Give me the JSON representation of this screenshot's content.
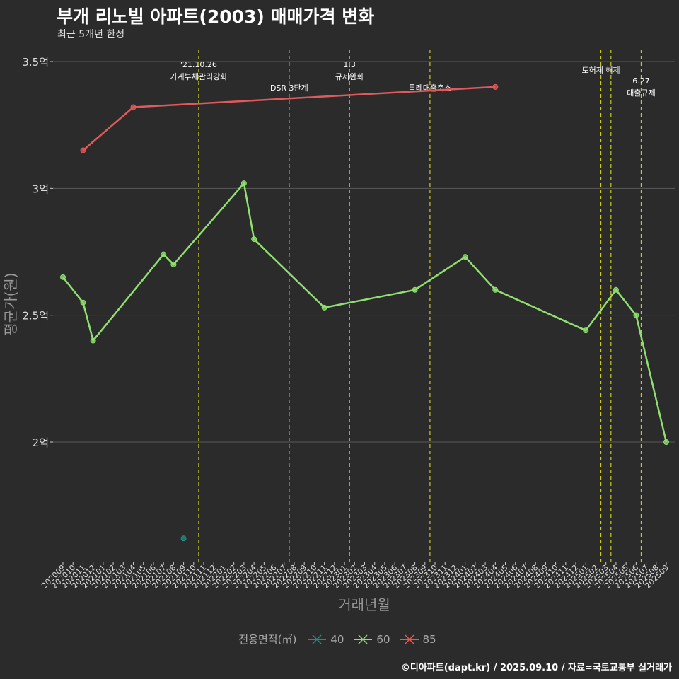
{
  "header": {
    "title": "부개 리노빌 아파트(2003) 매매가격 변화",
    "subtitle": "최근 5개년 한정"
  },
  "footer": {
    "credit": "©디아파트(dapt.kr) / 2025.09.10 / 자료=국토교통부 실거래가"
  },
  "colors": {
    "background": "#2b2b2c",
    "grid": "#5a5a5a",
    "event_line": "#c8c81e",
    "s40": "#2a8a80",
    "s60": "#90e070",
    "s85": "#e05a5a"
  },
  "chart_data": {
    "type": "line",
    "xlabel": "거래년월",
    "ylabel": "평균가(원)",
    "ylim": [
      1.55,
      3.55
    ],
    "y_ticks": [
      {
        "value": 2.0,
        "label": "2억"
      },
      {
        "value": 2.5,
        "label": "2.5억"
      },
      {
        "value": 3.0,
        "label": "3억"
      },
      {
        "value": 3.5,
        "label": "3.5억"
      }
    ],
    "categories": [
      "202009",
      "202010",
      "202011",
      "202012",
      "202101",
      "202102",
      "202103",
      "202104",
      "202105",
      "202106",
      "202107",
      "202108",
      "202109",
      "202110",
      "202111",
      "202112",
      "202201",
      "202202",
      "202203",
      "202204",
      "202205",
      "202206",
      "202207",
      "202208",
      "202209",
      "202210",
      "202211",
      "202212",
      "202301",
      "202302",
      "202303",
      "202304",
      "202305",
      "202306",
      "202307",
      "202308",
      "202309",
      "202310",
      "202311",
      "202312",
      "202401",
      "202402",
      "202403",
      "202404",
      "202405",
      "202406",
      "202407",
      "202408",
      "202409",
      "202410",
      "202411",
      "202412",
      "202501",
      "202502",
      "202503",
      "202504",
      "202505",
      "202506",
      "202507",
      "202508",
      "202509"
    ],
    "legend_title": "전용면적(㎡)",
    "series": [
      {
        "name": "40",
        "color": "#2a8a80",
        "points": [
          [
            "202109",
            1.62
          ]
        ]
      },
      {
        "name": "60",
        "color": "#90e070",
        "points": [
          [
            "202009",
            2.65
          ],
          [
            "202011",
            2.55
          ],
          [
            "202012",
            2.4
          ],
          [
            "202107",
            2.74
          ],
          [
            "202108",
            2.7
          ],
          [
            "202203",
            3.02
          ],
          [
            "202204",
            2.8
          ],
          [
            "202211",
            2.53
          ],
          [
            "202308",
            2.6
          ],
          [
            "202401",
            2.73
          ],
          [
            "202404",
            2.6
          ],
          [
            "202501",
            2.44
          ],
          [
            "202504",
            2.6
          ],
          [
            "202506",
            2.5
          ],
          [
            "202509",
            2.0
          ]
        ]
      },
      {
        "name": "85",
        "color": "#e05a5a",
        "points": [
          [
            "202011",
            3.15
          ],
          [
            "202104",
            3.32
          ],
          [
            "202404",
            3.4
          ]
        ]
      }
    ],
    "events": [
      {
        "x": "202110.5",
        "lines": [
          "'21.10.26",
          "가계부채관리강화"
        ]
      },
      {
        "x": "202207.5",
        "lines": [
          "DSR 3단계"
        ]
      },
      {
        "x": "202301.5",
        "lines": [
          "1.3",
          "규제완화"
        ]
      },
      {
        "x": "202309.5",
        "lines": [
          "특례대출축소"
        ]
      },
      {
        "x": "202502.5",
        "lines": [
          "토허제 해제"
        ]
      },
      {
        "x": "202503.5",
        "lines": [
          ""
        ]
      },
      {
        "x": "202506.5",
        "lines": [
          "6.27",
          "대출규제"
        ]
      }
    ]
  }
}
